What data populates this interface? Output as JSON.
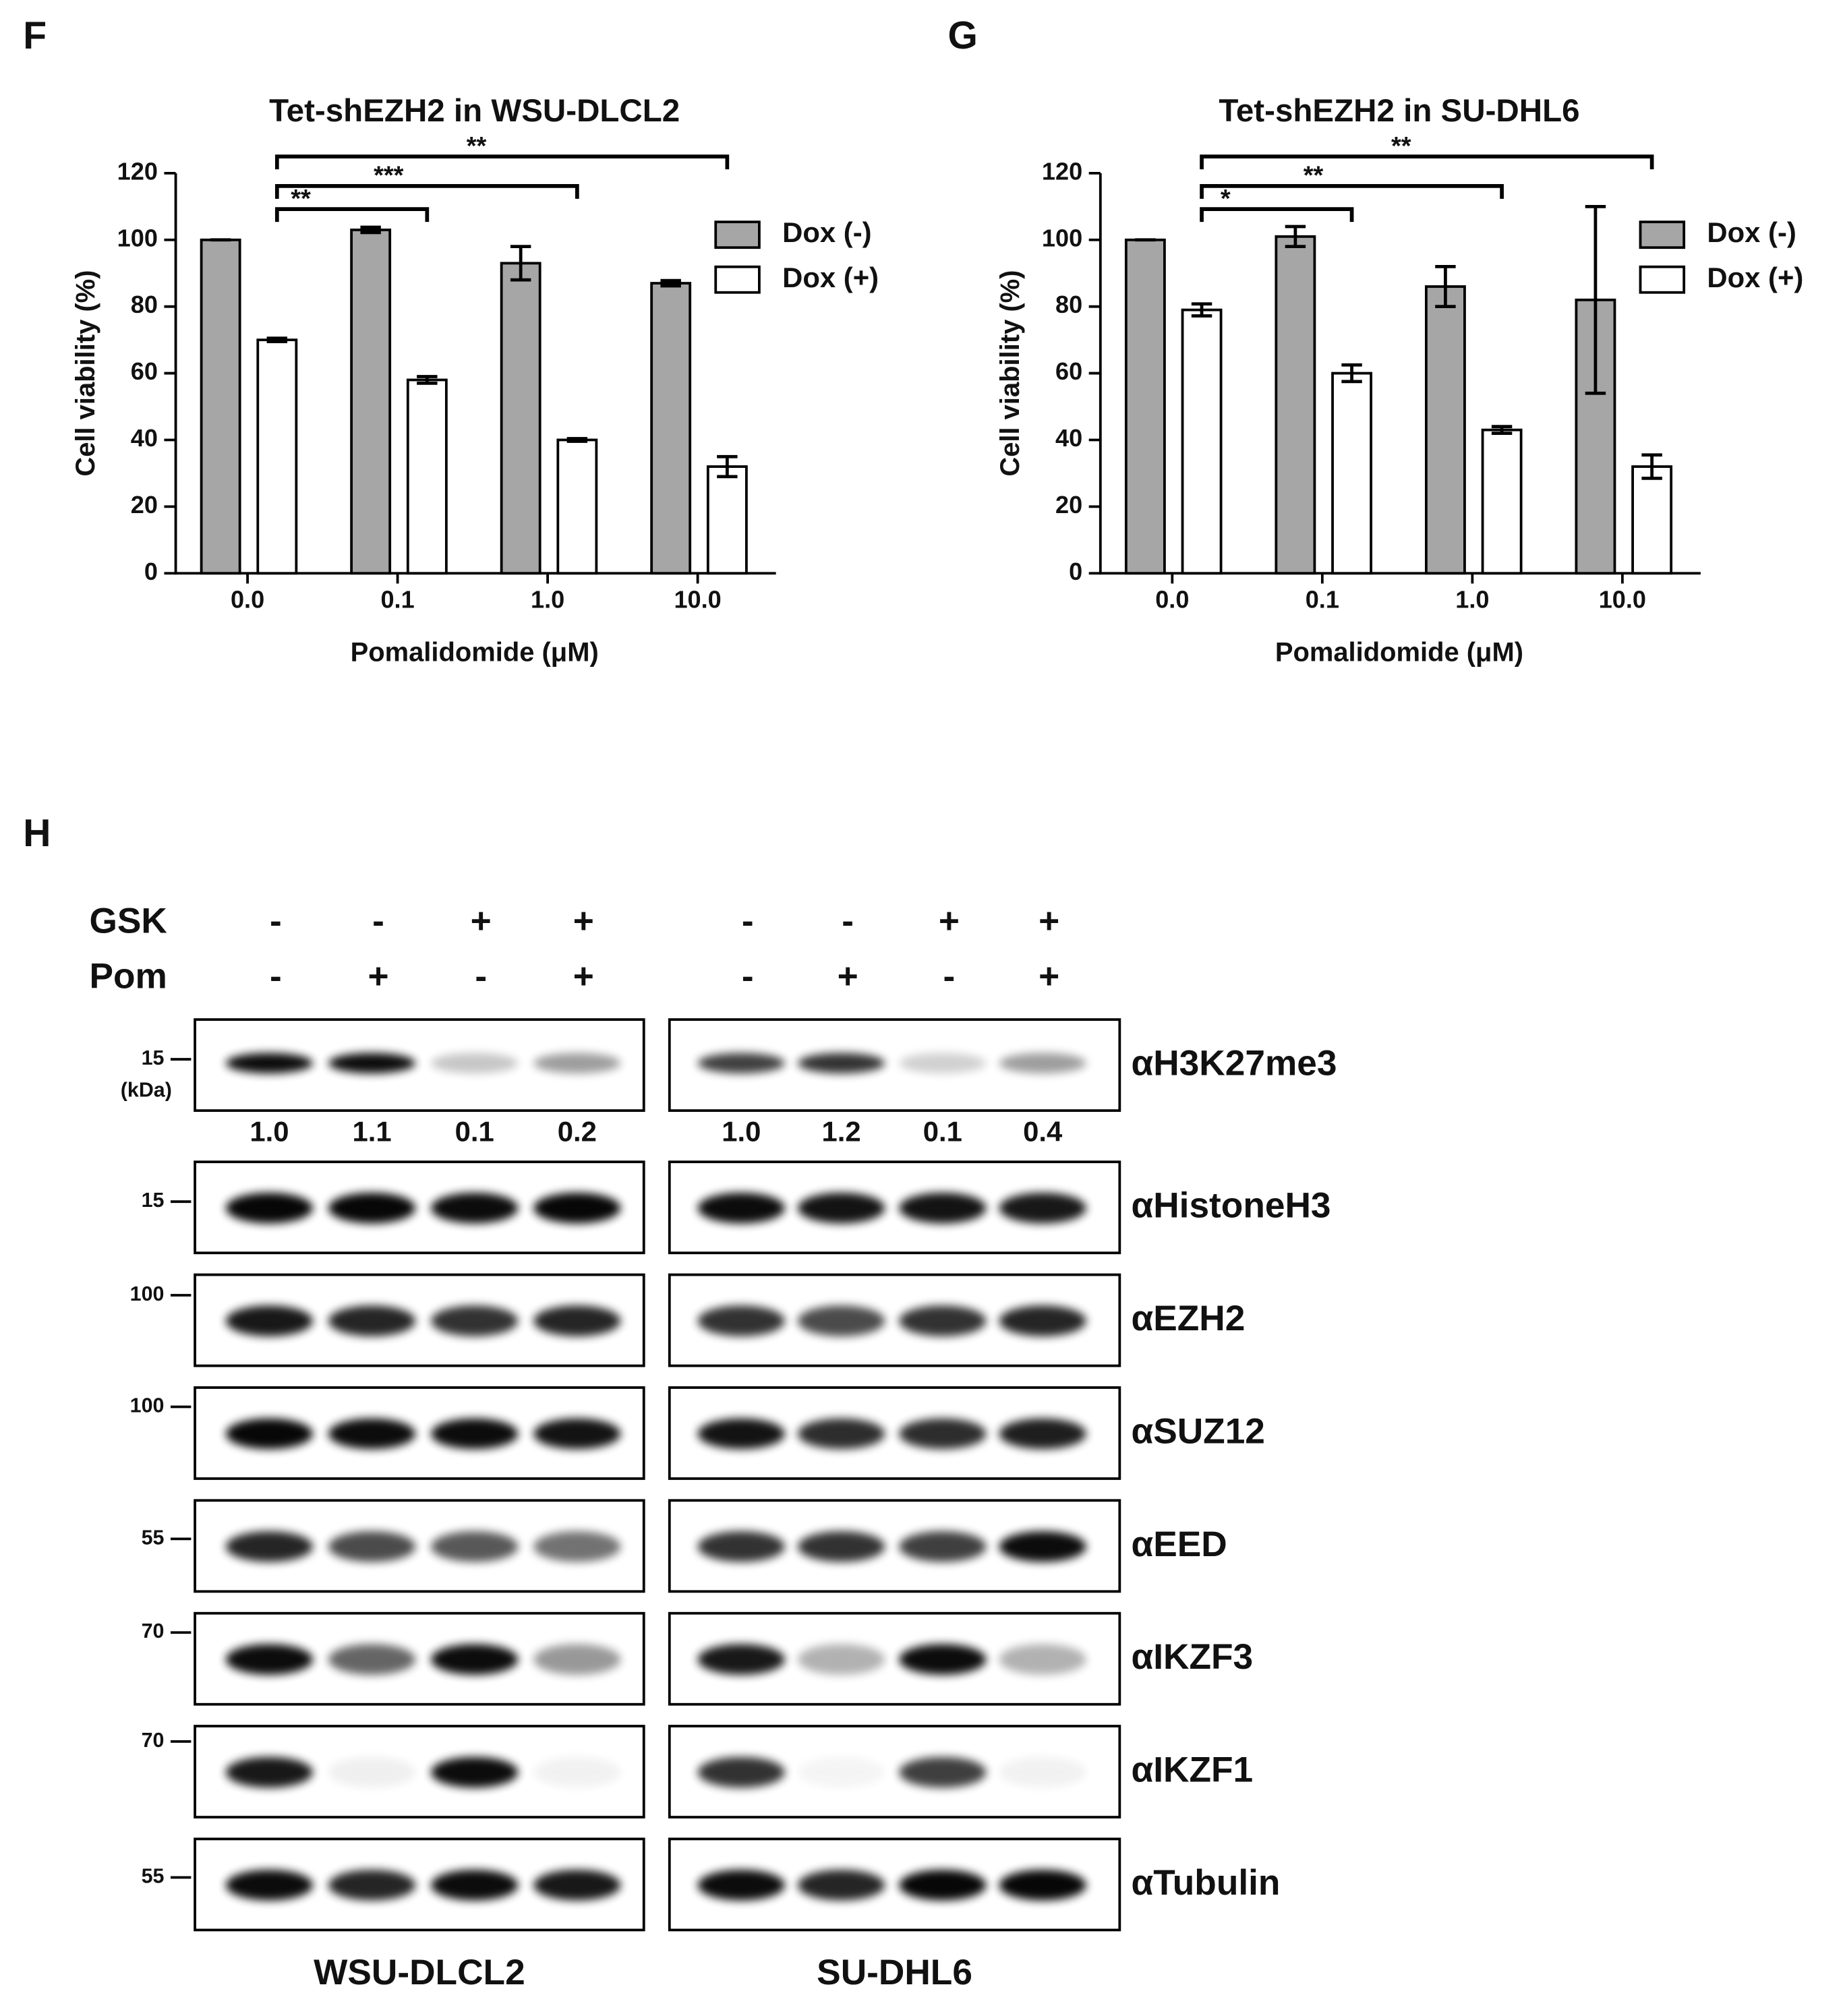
{
  "chart_data": [
    {
      "type": "bar",
      "panel": "F",
      "title": "Tet-shEZH2 in WSU-DLCL2",
      "x_label": "Pomalidomide (μM)",
      "y_label": "Cell viability (%)",
      "categories": [
        "0.0",
        "0.1",
        "1.0",
        "10.0"
      ],
      "series": [
        {
          "name": "Dox (-)",
          "color": "#a6a6a6",
          "values": [
            100,
            103,
            93,
            87
          ],
          "errors": [
            0,
            0.8,
            5,
            0.8
          ]
        },
        {
          "name": "Dox (+)",
          "color": "#ffffff",
          "values": [
            70,
            58,
            40,
            32
          ],
          "errors": [
            0.5,
            1,
            0.4,
            3
          ]
        }
      ],
      "ylim": [
        0,
        120
      ],
      "yticks": [
        0,
        20,
        40,
        60,
        80,
        100,
        120
      ],
      "significance": [
        "**",
        "***",
        "**"
      ]
    },
    {
      "type": "bar",
      "panel": "G",
      "title": "Tet-shEZH2 in SU-DHL6",
      "x_label": "Pomalidomide (μM)",
      "y_label": "Cell viability (%)",
      "categories": [
        "0.0",
        "0.1",
        "1.0",
        "10.0"
      ],
      "series": [
        {
          "name": "Dox (-)",
          "color": "#a6a6a6",
          "values": [
            100,
            101,
            86,
            82
          ],
          "errors": [
            0,
            3,
            6,
            28
          ]
        },
        {
          "name": "Dox (+)",
          "color": "#ffffff",
          "values": [
            79,
            60,
            43,
            32
          ],
          "errors": [
            1.8,
            2.5,
            1,
            3.5
          ]
        }
      ],
      "ylim": [
        0,
        120
      ],
      "yticks": [
        0,
        20,
        40,
        60,
        80,
        100,
        120
      ],
      "significance": [
        "*",
        "**",
        "**"
      ]
    }
  ],
  "blot": {
    "panel": "H",
    "treatments": [
      {
        "name": "GSK",
        "signs": [
          "-",
          "-",
          "+",
          "+"
        ]
      },
      {
        "name": "Pom",
        "signs": [
          "-",
          "+",
          "-",
          "+"
        ]
      }
    ],
    "cell_lines": [
      "WSU-DLCL2",
      "SU-DHL6"
    ],
    "marker_unit": "(kDa)",
    "rows": [
      {
        "antibody": "αH3K27me3",
        "marker": 15,
        "quantification": [
          [
            "1.0",
            "1.1",
            "0.1",
            "0.2"
          ],
          [
            "1.0",
            "1.2",
            "0.1",
            "0.4"
          ]
        ]
      },
      {
        "antibody": "αHistoneH3",
        "marker": 15
      },
      {
        "antibody": "αEZH2",
        "marker": 100
      },
      {
        "antibody": "αSUZ12",
        "marker": 100
      },
      {
        "antibody": "αEED",
        "marker": 55
      },
      {
        "antibody": "αIKZF3",
        "marker": 70
      },
      {
        "antibody": "αIKZF1",
        "marker": 70
      },
      {
        "antibody": "αTubulin",
        "marker": 55
      }
    ]
  }
}
